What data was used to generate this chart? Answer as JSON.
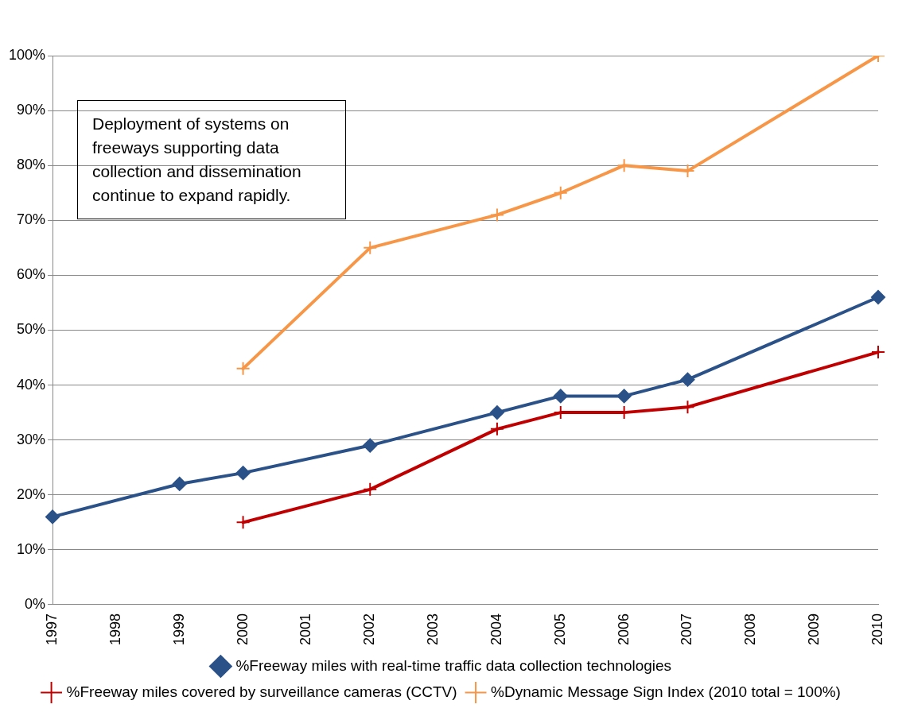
{
  "chart_data": {
    "type": "line",
    "categories": [
      "1997",
      "1998",
      "1999",
      "2000",
      "2001",
      "2002",
      "2003",
      "2004",
      "2005",
      "2006",
      "2007",
      "2008",
      "2009",
      "2010"
    ],
    "series": [
      {
        "name": "%Freeway miles with real-time traffic data collection technologies",
        "color": "#2b5288",
        "marker": "diamond",
        "values": [
          16,
          null,
          22,
          24,
          null,
          29,
          null,
          35,
          38,
          38,
          41,
          null,
          null,
          56
        ]
      },
      {
        "name": "%Freeway miles covered by surveillance cameras (CCTV)",
        "color": "#c00000",
        "marker": "cross",
        "values": [
          null,
          null,
          null,
          15,
          null,
          21,
          null,
          32,
          35,
          35,
          36,
          null,
          null,
          46
        ]
      },
      {
        "name": "%Dynamic Message Sign Index (2010 total = 100%)",
        "color": "#f79646",
        "marker": "cross",
        "values": [
          null,
          null,
          null,
          43,
          null,
          65,
          null,
          71,
          75,
          80,
          79,
          null,
          null,
          100
        ]
      }
    ],
    "ylim": [
      0,
      100
    ],
    "yticks": [
      {
        "value": 0,
        "label": "0%"
      },
      {
        "value": 10,
        "label": "10%"
      },
      {
        "value": 20,
        "label": "20%"
      },
      {
        "value": 30,
        "label": "30%"
      },
      {
        "value": 40,
        "label": "40%"
      },
      {
        "value": 50,
        "label": "50%"
      },
      {
        "value": 60,
        "label": "60%"
      },
      {
        "value": 70,
        "label": "70%"
      },
      {
        "value": 80,
        "label": "80%"
      },
      {
        "value": 90,
        "label": "90%"
      },
      {
        "value": 100,
        "label": "100%"
      }
    ],
    "grid": "y",
    "legend": "bottom",
    "line_style": "solid",
    "annotations": [
      "Deployment of systems on freeways supporting data collection and dissemination continue to expand rapidly."
    ]
  }
}
